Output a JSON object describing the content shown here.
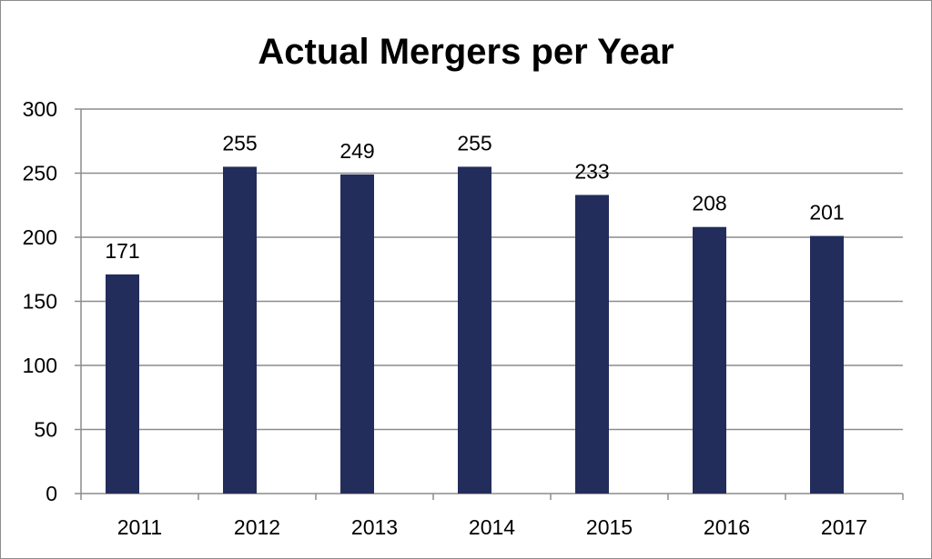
{
  "chart_data": {
    "type": "bar",
    "title": "Actual Mergers per Year",
    "categories": [
      "2011",
      "2012",
      "2013",
      "2014",
      "2015",
      "2016",
      "2017"
    ],
    "series": [
      {
        "values": [
          171,
          255,
          249,
          255,
          233,
          208,
          201
        ]
      }
    ],
    "data_labels": [
      "171",
      "255",
      "249",
      "255",
      "233",
      "208",
      "201"
    ],
    "y_ticks": [
      "0",
      "50",
      "100",
      "150",
      "200",
      "250",
      "300"
    ],
    "ylim": [
      0,
      300
    ],
    "grid": true,
    "legend": "none",
    "colors": {
      "bar": "#232d5b",
      "grid": "#8c8c8c",
      "axis": "#8c8c8c"
    }
  }
}
